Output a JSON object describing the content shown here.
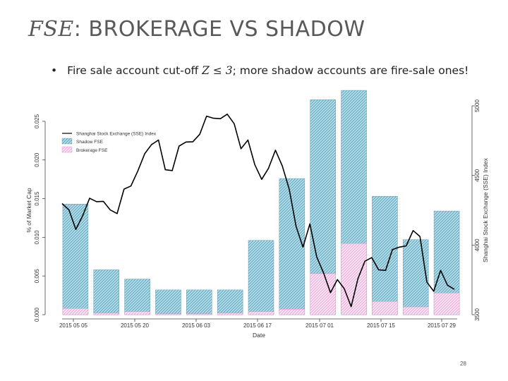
{
  "slide": {
    "title_var": "FSE",
    "title_rest": ": BROKERAGE VS SHADOW",
    "bullet_pre": "Fire sale account cut-off ",
    "bullet_math": "Z ≤ 3",
    "bullet_post": "; more shadow accounts are fire-sale ones!",
    "page_number": "28"
  },
  "chart_data": {
    "type": "bar",
    "xlabel": "Date",
    "ylabel": "% of Market Cap",
    "y2label": "Shanghai Stock Exchange (SSE) Index",
    "ylim": [
      0,
      0.027
    ],
    "y2lim": [
      3500,
      5000
    ],
    "yticks": [
      "0.000",
      "0.005",
      "0.010",
      "0.015",
      "0.020",
      "0.025"
    ],
    "y2ticks": [
      "3500",
      "4000",
      "4500",
      "5000"
    ],
    "xticks": [
      "2015 05 05",
      "2015 05 20",
      "2015 06 03",
      "2015 06 17",
      "2015 07 01",
      "2015 07 15",
      "2015 07 29"
    ],
    "legend": [
      "Shanghai Stock Exchange (SSE) Index",
      "Shadow FSE",
      "Brokerage FSE"
    ],
    "colors": {
      "shadow": "#6fb8cc",
      "brokerage": "#f5a6e0",
      "line": "#000000"
    },
    "series": [
      {
        "name": "Shadow FSE",
        "values": [
          0.0143,
          0.0058,
          0.0046,
          0.0032,
          0.0032,
          0.0032,
          0.0096,
          0.0176,
          0.0278,
          0.029,
          0.0153,
          0.0097,
          0.0134
        ]
      },
      {
        "name": "Brokerage FSE",
        "values": [
          0.0008,
          0.0002,
          0.0004,
          0.0001,
          0.0001,
          0.0002,
          0.0004,
          0.0007,
          0.0053,
          0.0092,
          0.0017,
          0.001,
          0.0028
        ]
      },
      {
        "name": "Shanghai Stock Exchange (SSE) Index",
        "values": [
          4298,
          4252,
          4112,
          4212,
          4336,
          4312,
          4314,
          4252,
          4226,
          4402,
          4424,
          4532,
          4656,
          4722,
          4754,
          4541,
          4535,
          4711,
          4740,
          4742,
          4796,
          4926,
          4911,
          4908,
          4940,
          4872,
          4692,
          4754,
          4578,
          4472,
          4552,
          4681,
          4568,
          4402,
          4135,
          3985,
          4152,
          3915,
          3799,
          3658,
          3752,
          3687,
          3558,
          3760,
          3884,
          3910,
          3822,
          3818,
          3967,
          3985,
          3994,
          4104,
          4062,
          3734,
          3668,
          3818,
          3712,
          3682
        ]
      }
    ]
  }
}
